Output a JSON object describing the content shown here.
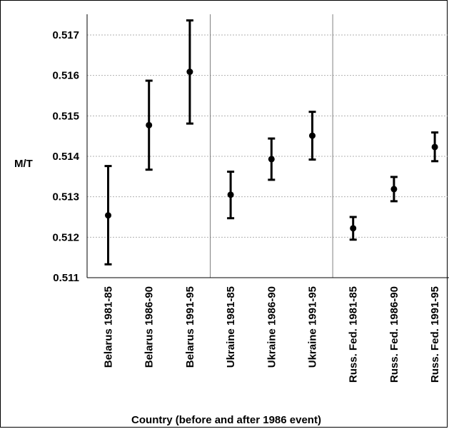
{
  "chart_data": {
    "type": "scatter",
    "title": "",
    "xlabel": "Country (before and after 1986 event)",
    "ylabel": "M/T",
    "ylim": [
      0.511,
      0.5173
    ],
    "yticks": [
      "0.511",
      "0.512",
      "0.513",
      "0.514",
      "0.515",
      "0.516",
      "0.517"
    ],
    "grid": true,
    "categories": [
      "Belarus 1981-85",
      "Belarus 1986-90",
      "Belarus 1991-95",
      "Ukraine 1981-85",
      "Ukraine 1986-90",
      "Ukraine 1991-95",
      "Russ. Fed. 1981-85",
      "Russ. Fed. 1986-90",
      "Russ. Fed. 1991-95"
    ],
    "values": [
      0.51254,
      0.51477,
      0.51609,
      0.51305,
      0.51393,
      0.51451,
      0.51222,
      0.51319,
      0.51423
    ],
    "error_low": [
      0.51133,
      0.51367,
      0.51481,
      0.51247,
      0.51342,
      0.51392,
      0.51194,
      0.51289,
      0.51388
    ],
    "error_high": [
      0.51376,
      0.51587,
      0.51736,
      0.51362,
      0.51444,
      0.5151,
      0.5125,
      0.51349,
      0.51459
    ],
    "group_separators_after": [
      3,
      6
    ],
    "colors": {
      "marker": "#000000",
      "grid": "#b0b0b0",
      "separator": "#808080"
    }
  }
}
